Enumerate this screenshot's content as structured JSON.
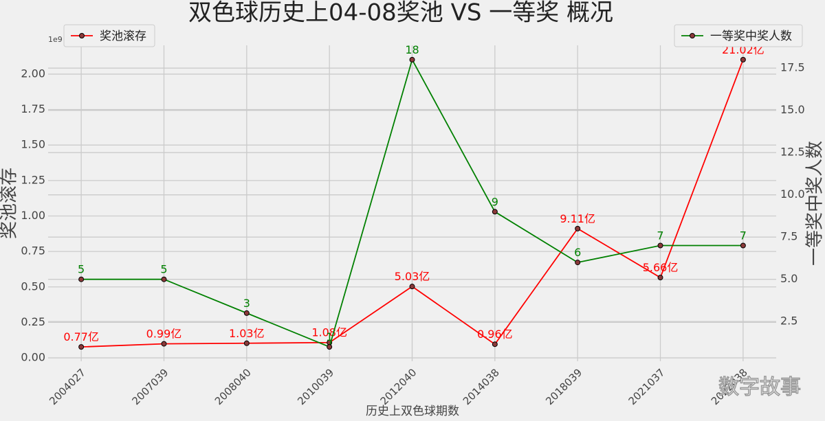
{
  "chart_data": {
    "type": "line",
    "title": "双色球历史上04-08奖池 VS 一等奖 概况",
    "xlabel": "历史上双色球期数",
    "ylabel": "奖池滚存",
    "y2label": "一等奖中奖人数",
    "y_offset_label": "1e9",
    "watermark": "数字故事",
    "categories": [
      "2004027",
      "2007039",
      "2008040",
      "2010039",
      "2012040",
      "2014038",
      "2018039",
      "2021037",
      "2022038"
    ],
    "series": [
      {
        "name": "奖池滚存",
        "color": "#ff0000",
        "axis": "y",
        "label_color": "#ff0000",
        "values": [
          0.077,
          0.099,
          0.103,
          0.108,
          0.503,
          0.096,
          0.911,
          0.566,
          2.102
        ],
        "value_labels": [
          "0.77亿",
          "0.99亿",
          "1.03亿",
          "1.08亿",
          "5.03亿",
          "0.96亿",
          "9.11亿",
          "5.66亿",
          "21.02亿"
        ]
      },
      {
        "name": "一等奖中奖人数",
        "color": "#008000",
        "axis": "y2",
        "label_color": "#008000",
        "values": [
          5,
          5,
          3,
          1,
          18,
          9,
          6,
          7,
          7
        ]
      }
    ],
    "ylim": [
      -0.024,
      2.203
    ],
    "yticks": [
      {
        "value": 0,
        "label": "0.00"
      },
      0.25,
      {
        "value": 0.5,
        "label": "0.50"
      },
      0.75,
      {
        "value": 1,
        "label": "1.00"
      },
      1.25,
      {
        "value": 1.5,
        "label": "1.50"
      },
      1.75,
      {
        "value": 2,
        "label": "2.00"
      }
    ],
    "y2lim": [
      0.15,
      18.85
    ],
    "y2ticks": [
      2.5,
      {
        "value": 5,
        "label": "5.0"
      },
      7.5,
      {
        "value": 10,
        "label": "10.0"
      },
      12.5,
      {
        "value": 15,
        "label": "15.0"
      },
      17.5
    ],
    "grid": true,
    "legend_position": [
      "upper left",
      "upper right"
    ]
  }
}
